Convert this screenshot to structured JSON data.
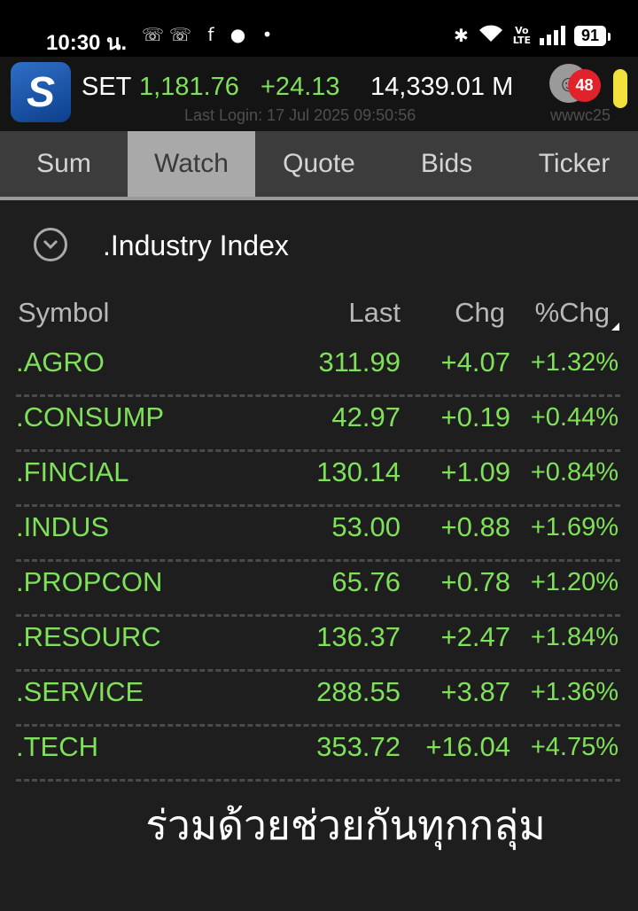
{
  "status_bar": {
    "time": "10:30 น.",
    "notifications": "☏☏ f ● •",
    "volte": "Vo\nLTE",
    "battery": "91"
  },
  "header": {
    "index_name": "SET",
    "index_value": "1,181.76",
    "index_change": "+24.13",
    "volume": "14,339.01 M",
    "last_login": "Last Login: 17 Jul 2025 09:50:56",
    "notification_count": "48",
    "username": "wwwc25"
  },
  "tabs": [
    {
      "label": "Sum",
      "active": false
    },
    {
      "label": "Watch",
      "active": true
    },
    {
      "label": "Quote",
      "active": false
    },
    {
      "label": "Bids",
      "active": false
    },
    {
      "label": "Ticker",
      "active": false
    }
  ],
  "watchlist": {
    "group_title": ".Industry Index",
    "columns": {
      "symbol": "Symbol",
      "last": "Last",
      "chg": "Chg",
      "pct": "%Chg"
    },
    "rows": [
      {
        "symbol": ".AGRO",
        "last": "311.99",
        "chg": "+4.07",
        "pct": "+1.32%"
      },
      {
        "symbol": ".CONSUMP",
        "last": "42.97",
        "chg": "+0.19",
        "pct": "+0.44%"
      },
      {
        "symbol": ".FINCIAL",
        "last": "130.14",
        "chg": "+1.09",
        "pct": "+0.84%"
      },
      {
        "symbol": ".INDUS",
        "last": "53.00",
        "chg": "+0.88",
        "pct": "+1.69%"
      },
      {
        "symbol": ".PROPCON",
        "last": "65.76",
        "chg": "+0.78",
        "pct": "+1.20%"
      },
      {
        "symbol": ".RESOURC",
        "last": "136.37",
        "chg": "+2.47",
        "pct": "+1.84%"
      },
      {
        "symbol": ".SERVICE",
        "last": "288.55",
        "chg": "+3.87",
        "pct": "+1.36%"
      },
      {
        "symbol": ".TECH",
        "last": "353.72",
        "chg": "+16.04",
        "pct": "+4.75%"
      }
    ]
  },
  "banner_text": "ร่วมด้วยช่วยกันทุกกลุ่ม",
  "colors": {
    "positive": "#7fe05a",
    "active_tab": "#a9a9a9",
    "badge": "#e0222a"
  }
}
